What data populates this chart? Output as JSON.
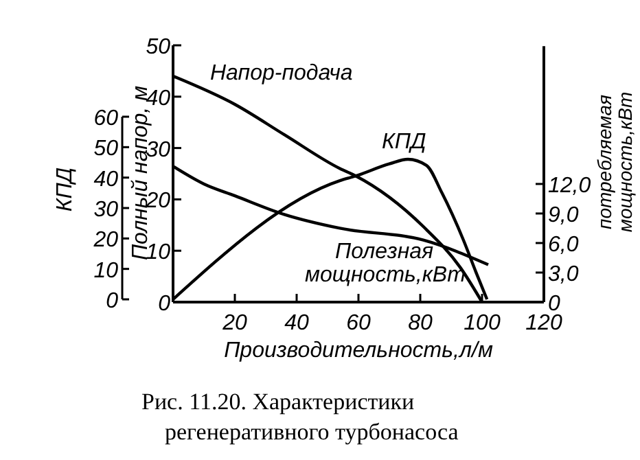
{
  "chart_data": {
    "type": "line",
    "xlabel": "Производительность,л/м",
    "ylabel": "Полный напор, м",
    "y2label": "потребляемая мощность,кВт",
    "y3label": "КПД",
    "xlim": [
      0,
      120
    ],
    "xticks": [
      20,
      40,
      60,
      80,
      100,
      120
    ],
    "ylim": [
      0,
      50
    ],
    "yticks": [
      0,
      10,
      20,
      30,
      40,
      50
    ],
    "y2lim": [
      0,
      26
    ],
    "y2ticks": [
      0,
      {
        "value": 3,
        "label": "3,0"
      },
      {
        "value": 6,
        "label": "6,0"
      },
      {
        "value": 9,
        "label": "9,0"
      },
      {
        "value": 12,
        "label": "12,0"
      }
    ],
    "y3lim": [
      0,
      60
    ],
    "y3ticks": [
      0,
      10,
      20,
      30,
      40,
      50,
      60
    ],
    "series": [
      {
        "name": "Напор-подача",
        "color": "#000000",
        "x": [
          0,
          20,
          36,
          54,
          59,
          81,
          93,
          100
        ],
        "values": [
          44,
          38.5,
          32.6,
          26,
          24.6,
          14.7,
          6.7,
          0
        ]
      },
      {
        "name": "Полезная мощность,кВт",
        "color": "#000000",
        "axis": "y2",
        "x": [
          0,
          10,
          20,
          36,
          54,
          81,
          102
        ],
        "values": [
          13.8,
          12,
          10.8,
          8.9,
          7.5,
          6.3,
          3.8
        ]
      },
      {
        "name": "КПД",
        "color": "#000000",
        "axis": "y3",
        "x": [
          0,
          54,
          59,
          70,
          76,
          82,
          87,
          94,
          98,
          101.6
        ],
        "values": [
          0,
          39,
          40.5,
          44.5,
          46,
          44,
          35,
          19.4,
          9,
          0
        ]
      }
    ],
    "annotations": [
      "Рис. 11.20. Характеристики регенеративного турбонасоса"
    ],
    "marker": "none",
    "line_style": "solid",
    "grid": false
  }
}
